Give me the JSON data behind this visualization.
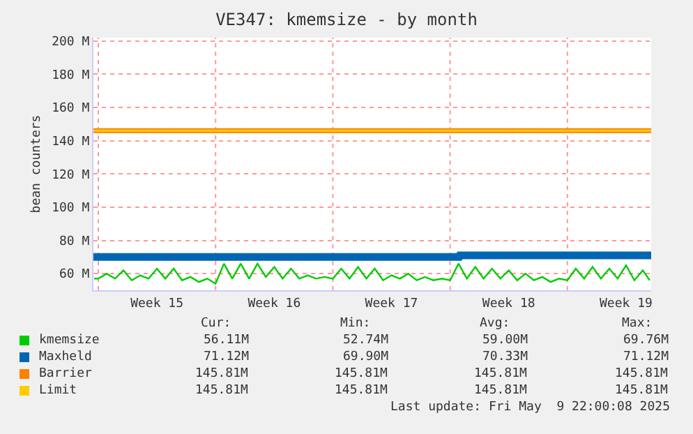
{
  "chart_data": {
    "type": "line",
    "title": "VE347: kmemsize - by month",
    "ylabel": "bean counters",
    "xlim": [
      "2025-04-06T17:00",
      "2025-05-10T00:00"
    ],
    "xticks": [
      {
        "value": "2025-04-07",
        "label": null
      },
      {
        "value": "2025-04-10T12:00",
        "label": "Week 15"
      },
      {
        "value": "2025-04-14",
        "label": null
      },
      {
        "value": "2025-04-17T12:00",
        "label": "Week 16"
      },
      {
        "value": "2025-04-21",
        "label": null
      },
      {
        "value": "2025-04-24T12:00",
        "label": "Week 17"
      },
      {
        "value": "2025-04-28",
        "label": null
      },
      {
        "value": "2025-05-01T12:00",
        "label": "Week 18"
      },
      {
        "value": "2025-05-05",
        "label": null
      },
      {
        "value": "2025-05-08T12:00",
        "label": "Week 19"
      }
    ],
    "ylim": [
      50,
      202
    ],
    "yticks": [
      {
        "value": 60,
        "label": "60 M"
      },
      {
        "value": 80,
        "label": "80 M"
      },
      {
        "value": 100,
        "label": "100 M"
      },
      {
        "value": 120,
        "label": "120 M"
      },
      {
        "value": 140,
        "label": "140 M"
      },
      {
        "value": 160,
        "label": "160 M"
      },
      {
        "value": 180,
        "label": "180 M"
      },
      {
        "value": 200,
        "label": "200 M"
      }
    ],
    "grid": true,
    "legend": "bottom",
    "marker": "none",
    "line_style": "solid",
    "series": [
      {
        "name": "kmemsize",
        "color": "#00cc00",
        "x": [
          "2025-04-06T18:00",
          "2025-04-07T00:00",
          "2025-04-07T12:00",
          "2025-04-08T00:00",
          "2025-04-08T12:00",
          "2025-04-09T00:00",
          "2025-04-09T12:00",
          "2025-04-10T00:00",
          "2025-04-10T12:00",
          "2025-04-11T00:00",
          "2025-04-11T12:00",
          "2025-04-12T00:00",
          "2025-04-12T12:00",
          "2025-04-13T00:00",
          "2025-04-13T12:00",
          "2025-04-14T00:00",
          "2025-04-14T12:00",
          "2025-04-15T00:00",
          "2025-04-15T12:00",
          "2025-04-16T00:00",
          "2025-04-16T12:00",
          "2025-04-17T00:00",
          "2025-04-17T12:00",
          "2025-04-18T00:00",
          "2025-04-18T12:00",
          "2025-04-19T00:00",
          "2025-04-19T12:00",
          "2025-04-20T00:00",
          "2025-04-20T12:00",
          "2025-04-21T00:00",
          "2025-04-21T12:00",
          "2025-04-22T00:00",
          "2025-04-22T12:00",
          "2025-04-23T00:00",
          "2025-04-23T12:00",
          "2025-04-24T00:00",
          "2025-04-24T12:00",
          "2025-04-25T00:00",
          "2025-04-25T12:00",
          "2025-04-26T00:00",
          "2025-04-26T12:00",
          "2025-04-27T00:00",
          "2025-04-27T12:00",
          "2025-04-28T00:00",
          "2025-04-28T12:00",
          "2025-04-29T00:00",
          "2025-04-29T12:00",
          "2025-04-30T00:00",
          "2025-04-30T12:00",
          "2025-05-01T00:00",
          "2025-05-01T12:00",
          "2025-05-02T00:00",
          "2025-05-02T12:00",
          "2025-05-03T00:00",
          "2025-05-03T12:00",
          "2025-05-04T00:00",
          "2025-05-04T12:00",
          "2025-05-05T00:00",
          "2025-05-05T12:00",
          "2025-05-06T00:00",
          "2025-05-06T12:00",
          "2025-05-07T00:00",
          "2025-05-07T12:00",
          "2025-05-08T00:00",
          "2025-05-08T12:00",
          "2025-05-09T00:00",
          "2025-05-09T12:00",
          "2025-05-09T22:00"
        ],
        "values": [
          57,
          57,
          60,
          57,
          62,
          56,
          59,
          57,
          63,
          57,
          63,
          56,
          58,
          55,
          57,
          54,
          66,
          57,
          66,
          57,
          66,
          58,
          64,
          57,
          63,
          57,
          59,
          57,
          58,
          57,
          63,
          57,
          64,
          57,
          63,
          56,
          59,
          57,
          60,
          56,
          58,
          56,
          57,
          56,
          66,
          57,
          64,
          57,
          63,
          57,
          62,
          56,
          60,
          56,
          58,
          55,
          57,
          56,
          63,
          57,
          64,
          57,
          63,
          57,
          65,
          56,
          62,
          56
        ]
      },
      {
        "name": "Maxheld",
        "color": "#0066b3",
        "x": [
          "2025-04-06T17:00",
          "2025-04-28T13:00",
          "2025-04-28T14:00",
          "2025-05-10T00:00"
        ],
        "values": [
          70,
          70,
          71,
          71
        ]
      },
      {
        "name": "Barrier",
        "color": "#ff8000",
        "x": [
          "2025-04-06T17:00",
          "2025-05-10T00:00"
        ],
        "values": [
          146,
          146
        ]
      },
      {
        "name": "Limit",
        "color": "#ffcc00",
        "x": [
          "2025-04-06T17:00",
          "2025-05-10T00:00"
        ],
        "values": [
          146,
          146
        ]
      }
    ],
    "annotations": [
      "Cur:",
      "Min:",
      "Avg:",
      "Max:",
      "56.11M",
      "52.74M",
      "59.00M",
      "69.76M",
      "71.12M",
      "69.90M",
      "70.33M",
      "71.12M",
      "145.81M",
      "145.81M",
      "145.81M",
      "145.81M",
      "145.81M",
      "145.81M",
      "145.81M",
      "145.81M",
      "Last update: Fri May  9 22:00:08 2025"
    ]
  }
}
